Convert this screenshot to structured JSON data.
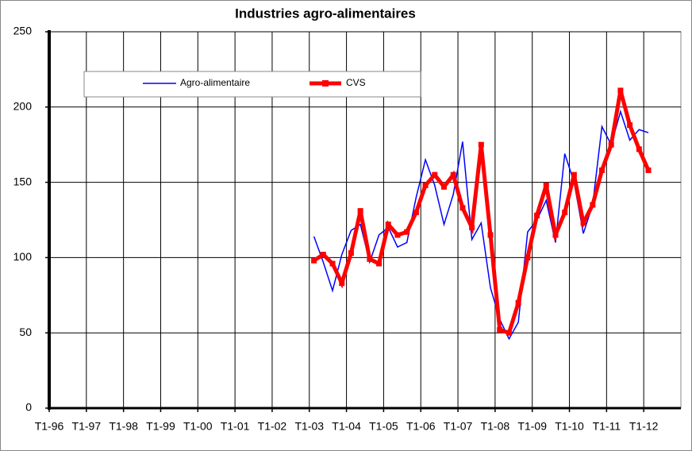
{
  "chart_data": {
    "type": "line",
    "title": "Industries agro-alimentaires",
    "categories": [
      "T1-96",
      null,
      null,
      null,
      "T1-97",
      null,
      null,
      null,
      "T1-98",
      null,
      null,
      null,
      "T1-99",
      null,
      null,
      null,
      "T1-00",
      null,
      null,
      null,
      "T1-01",
      null,
      null,
      null,
      "T1-02",
      null,
      null,
      null,
      "T1-03",
      null,
      null,
      null,
      "T1-04",
      null,
      null,
      null,
      "T1-05",
      null,
      null,
      null,
      "T1-06",
      null,
      null,
      null,
      "T1-07",
      null,
      null,
      null,
      "T1-08",
      null,
      null,
      null,
      "T1-09",
      null,
      null,
      null,
      "T1-10",
      null,
      null,
      null,
      "T1-11",
      null,
      null,
      null,
      "T1-12",
      null,
      null,
      null
    ],
    "series": [
      {
        "name": "Agro-alimentaire",
        "color": "#0000ff",
        "values": [
          null,
          null,
          null,
          null,
          null,
          null,
          null,
          null,
          null,
          null,
          null,
          null,
          null,
          null,
          null,
          null,
          null,
          null,
          null,
          null,
          null,
          null,
          null,
          null,
          null,
          null,
          null,
          null,
          114,
          97,
          78,
          102,
          118,
          122,
          97,
          115,
          120,
          107,
          110,
          140,
          165,
          148,
          122,
          142,
          177,
          112,
          123,
          80,
          59,
          46,
          57,
          117,
          125,
          138,
          110,
          169,
          150,
          116,
          135,
          187,
          175,
          197,
          178,
          185,
          183,
          null,
          null,
          null
        ]
      },
      {
        "name": "CVS",
        "color": "#ff0000",
        "values": [
          null,
          null,
          null,
          null,
          null,
          null,
          null,
          null,
          null,
          null,
          null,
          null,
          null,
          null,
          null,
          null,
          null,
          null,
          null,
          null,
          null,
          null,
          null,
          null,
          null,
          null,
          null,
          null,
          98,
          102,
          96,
          83,
          103,
          131,
          99,
          96,
          122,
          115,
          117,
          130,
          148,
          155,
          147,
          155,
          133,
          120,
          175,
          115,
          52,
          50,
          70,
          100,
          128,
          148,
          115,
          130,
          155,
          123,
          135,
          158,
          175,
          211,
          188,
          172,
          158,
          null,
          null,
          null
        ]
      }
    ],
    "ylim": [
      0,
      250
    ],
    "yticks": [
      0,
      50,
      100,
      150,
      200,
      250
    ],
    "grid": true
  }
}
